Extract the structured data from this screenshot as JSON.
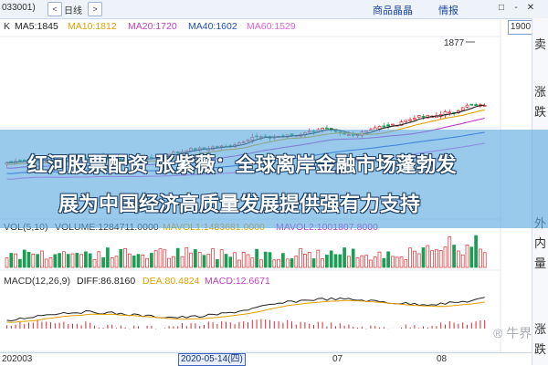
{
  "header": {
    "code": "033001)",
    "nav_back": "<",
    "nav_period": "日线",
    "nav_forward": ">",
    "link_detail": "商品晶晶",
    "link_info": "情报",
    "win_restore": "□",
    "win_min": "-",
    "win_close": "✕"
  },
  "ma_legend": {
    "k": "K",
    "ma5": "MA5:1845",
    "ma10": "MA10:1812",
    "ma20": "MA20:1720",
    "ma40": "MA40:1602",
    "ma60": "MA60:1529"
  },
  "price_box": "1900",
  "peak_label": "1877",
  "right_panel": [
    "卖",
    "涨",
    "跌",
    "外",
    "内",
    "量",
    "涨",
    "跌"
  ],
  "banner": {
    "line1": "红河股票配资 张紫薇：全球离岸金融市场蓬勃发",
    "line2": "展为中国经济高质量发展提供强有力支持"
  },
  "vol_legend": {
    "name": "VOL(5,10)",
    "volume": "VOLUME:1284711.0000",
    "mavol1": "MAVOL1:1483681.0000",
    "mavol2": "MAVOL2:1001807.8000"
  },
  "macd_legend": {
    "name": "MACD(12,26,9)",
    "diff": "DIFF:86.8160",
    "dea": "DEA:80.4824",
    "macd": "MACD:12.6671"
  },
  "date_axis": {
    "d1": "202003",
    "selected": "2020-05-14(四)",
    "d2": "07",
    "d3": "08"
  },
  "watermark": "® 牛界",
  "colors": {
    "ma5": "#222222",
    "ma10": "#e0a000",
    "ma20": "#c040c0",
    "ma40": "#2050c0",
    "ma60": "#e060e0",
    "up": "#e0282e",
    "down": "#1a9e56",
    "banner": "#5aaae1"
  }
}
